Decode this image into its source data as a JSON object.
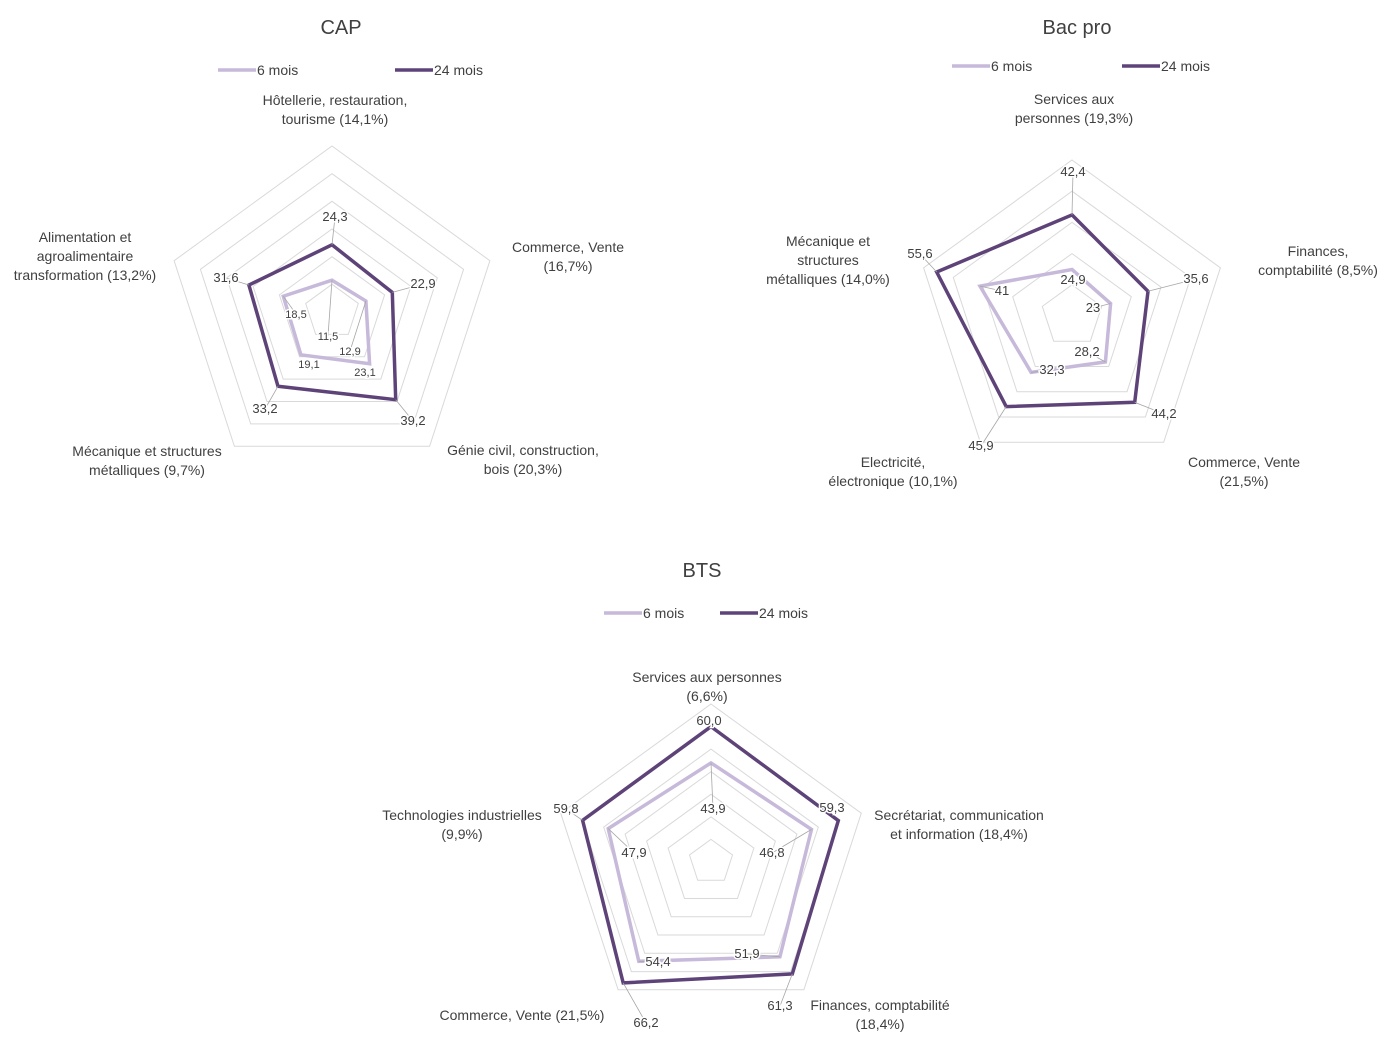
{
  "chart_data": [
    {
      "type": "radar",
      "title": "CAP",
      "legend_position": "top",
      "grid": true,
      "series": [
        {
          "name": "6 mois",
          "color": "#C7B9DA"
        },
        {
          "name": "24 mois",
          "color": "#5E4379"
        }
      ],
      "axes": [
        {
          "label": [
            "Hôtellerie, restauration,",
            "tourisme (14,1%)"
          ],
          "values": [
            11.5,
            24.3
          ],
          "value_labels": [
            "11,5",
            "24,3"
          ]
        },
        {
          "label": [
            "Commerce, Vente",
            "(16,7%)"
          ],
          "values": [
            12.9,
            22.9
          ],
          "value_labels": [
            "12,9",
            "22,9"
          ]
        },
        {
          "label": [
            "Génie civil, construction,",
            "bois (20,3%)"
          ],
          "values": [
            23.1,
            39.2
          ],
          "value_labels": [
            "23,1",
            "39,2"
          ]
        },
        {
          "label": [
            "Mécanique et structures",
            "métalliques (9,7%)"
          ],
          "values": [
            19.1,
            33.2
          ],
          "value_labels": [
            "19,1",
            "33,2"
          ]
        },
        {
          "label": [
            "Alimentation et",
            "agroalimentaire",
            "transformation (13,2%)"
          ],
          "values": [
            18.5,
            31.6
          ],
          "value_labels": [
            "18,5",
            "31,6"
          ]
        }
      ]
    },
    {
      "type": "radar",
      "title": "Bac pro",
      "legend_position": "top",
      "grid": true,
      "series": [
        {
          "name": "6 mois",
          "color": "#C7B9DA"
        },
        {
          "name": "24 mois",
          "color": "#5E4379"
        }
      ],
      "axes": [
        {
          "label": [
            "Services aux",
            "personnes (19,3%)"
          ],
          "values": [
            24.9,
            42.4
          ],
          "value_labels": [
            "24,9",
            "42,4"
          ]
        },
        {
          "label": [
            "Finances,",
            "comptabilité (8,5%)"
          ],
          "values": [
            23,
            35.6
          ],
          "value_labels": [
            "23",
            "35,6"
          ]
        },
        {
          "label": [
            "Commerce, Vente",
            "(21,5%)"
          ],
          "values": [
            28.2,
            44.2
          ],
          "value_labels": [
            "28,2",
            "44,2"
          ]
        },
        {
          "label": [
            "Electricité,",
            "électronique (10,1%)"
          ],
          "values": [
            32.3,
            45.9
          ],
          "value_labels": [
            "32,3",
            "45,9"
          ]
        },
        {
          "label": [
            "Mécanique et",
            "structures",
            "métalliques (14,0%)"
          ],
          "values": [
            41,
            55.6
          ],
          "value_labels": [
            "41",
            "55,6"
          ]
        }
      ]
    },
    {
      "type": "radar",
      "title": "BTS",
      "legend_position": "top",
      "grid": true,
      "series": [
        {
          "name": "6 mois",
          "color": "#C7B9DA"
        },
        {
          "name": "24 mois",
          "color": "#5E4379"
        }
      ],
      "axes": [
        {
          "label": [
            "Services aux personnes",
            "(6,6%)"
          ],
          "values": [
            43.9,
            60.0
          ],
          "value_labels": [
            "43,9",
            "60,0"
          ]
        },
        {
          "label": [
            "Secrétariat, communication",
            "et information (18,4%)"
          ],
          "values": [
            46.8,
            59.3
          ],
          "value_labels": [
            "46,8",
            "59,3"
          ]
        },
        {
          "label": [
            "Finances, comptabilité",
            "(18,4%)"
          ],
          "values": [
            51.9,
            61.3
          ],
          "value_labels": [
            "51,9",
            "61,3"
          ]
        },
        {
          "label": [
            "Commerce, Vente (21,5%)"
          ],
          "values": [
            54.4,
            66.2
          ],
          "value_labels": [
            "54,4",
            "66,2"
          ]
        },
        {
          "label": [
            "Technologies industrielles",
            "(9,9%)"
          ],
          "values": [
            47.9,
            59.8
          ],
          "value_labels": [
            "47,9",
            "59,8"
          ]
        }
      ]
    }
  ]
}
